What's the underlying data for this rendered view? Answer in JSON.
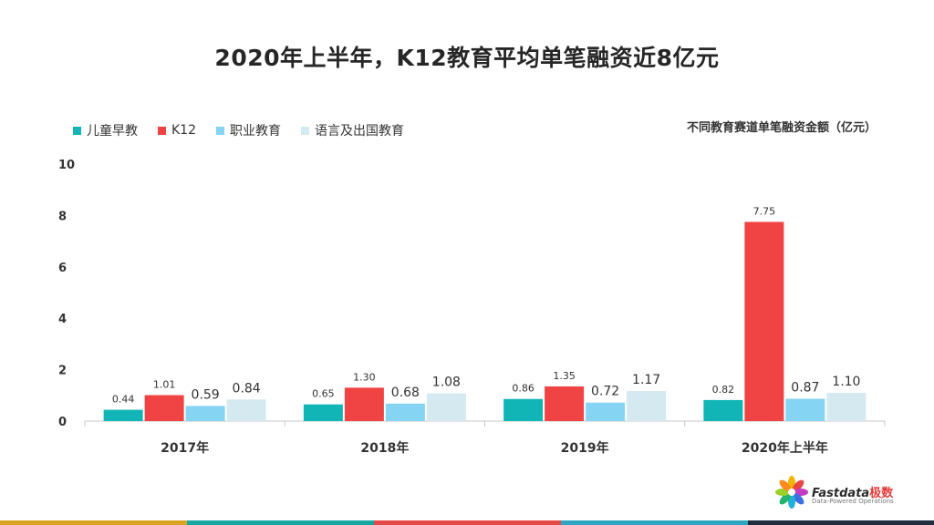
{
  "title": "2020年上半年，K12教育平均单笔融资近8亿元",
  "subtitle": "不同教育赛道单笔融资金额（亿元）",
  "legend": [
    {
      "label": "儿童早教",
      "color": "#12b5b5"
    },
    {
      "label": "K12",
      "color": "#f04343"
    },
    {
      "label": "职业教育",
      "color": "#86d4f4"
    },
    {
      "label": "语言及出国教育",
      "color": "#d5eaf0"
    }
  ],
  "chart_data": {
    "type": "bar",
    "title": "2020年上半年，K12教育平均单笔融资近8亿元",
    "subtitle": "不同教育赛道单笔融资金额（亿元）",
    "categories": [
      "2017年",
      "2018年",
      "2019年",
      "2020年上半年"
    ],
    "series": [
      {
        "name": "儿童早教",
        "color": "#12b5b5",
        "values": [
          0.44,
          0.65,
          0.86,
          0.82
        ],
        "labels": [
          "0.44",
          "0.65",
          "0.86",
          "0.82"
        ]
      },
      {
        "name": "K12",
        "color": "#f04343",
        "values": [
          1.01,
          1.3,
          1.35,
          7.75
        ],
        "labels": [
          "1.01",
          "1.30",
          "1.35",
          "7.75"
        ]
      },
      {
        "name": "职业教育",
        "color": "#86d4f4",
        "values": [
          0.59,
          0.68,
          0.72,
          0.87
        ],
        "labels": [
          "0.59",
          "0.68",
          "0.72",
          "0.87"
        ]
      },
      {
        "name": "语言及出国教育",
        "color": "#d5eaf0",
        "values": [
          0.84,
          1.08,
          1.17,
          1.1
        ],
        "labels": [
          "0.84",
          "1.08",
          "1.17",
          "1.10"
        ]
      }
    ],
    "ylim": [
      0,
      10
    ],
    "yticks": [
      "0",
      "2",
      "4",
      "6",
      "8",
      "10"
    ],
    "grid": false,
    "legend_position": "top-left"
  },
  "logo": {
    "brand": "Fastdata",
    "brand_cn": "极数",
    "tagline": "Data-Powered Operations"
  },
  "bottom_bar_colors": [
    "#d9a520",
    "#16a7a3",
    "#e44a4a",
    "#2fa6c0",
    "#1f2d3d"
  ]
}
